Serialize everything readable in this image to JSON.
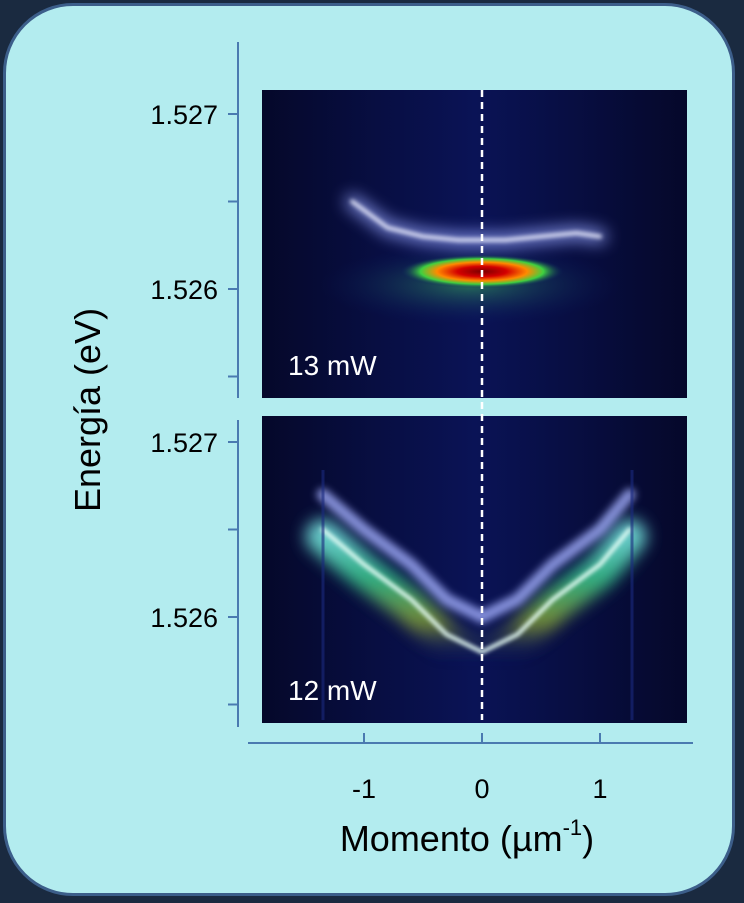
{
  "chart_data": {
    "type": "heatmap",
    "title": "",
    "xlabel": "Momento (µm",
    "xlabel_superscript": "-1",
    "xlabel_close": ")",
    "ylabel": "Energía (eV)",
    "x_ticks": [
      -1,
      0,
      1
    ],
    "x_tick_labels": [
      "-1",
      "0",
      "1"
    ],
    "xlim": [
      -1.8,
      1.8
    ],
    "zero_line": true,
    "colormap": "jet-like (dark blue → cyan → green → yellow → red), white highlights",
    "panels": [
      {
        "label": "13 mW",
        "power_mW": 13,
        "ylim": [
          1.5255,
          1.5272
        ],
        "y_ticks": [
          1.527,
          1.526
        ],
        "y_tick_labels": [
          "1.527",
          "1.526"
        ],
        "dispersion_k": [
          -1.1,
          -0.8,
          -0.5,
          -0.2,
          0.0,
          0.2,
          0.5,
          0.8,
          1.0
        ],
        "dispersion_E": [
          1.5265,
          1.52635,
          1.5263,
          1.52628,
          1.52628,
          1.52628,
          1.5263,
          1.52632,
          1.5263
        ],
        "condensate_k": 0.0,
        "condensate_E": 1.5261
      },
      {
        "label": "12 mW",
        "power_mW": 12,
        "ylim": [
          1.5255,
          1.5272
        ],
        "y_ticks": [
          1.527,
          1.526
        ],
        "y_tick_labels": [
          "1.527",
          "1.526"
        ],
        "dispersion_k": [
          -1.35,
          -1.0,
          -0.6,
          -0.3,
          0.0,
          0.3,
          0.6,
          1.0,
          1.25
        ],
        "dispersion_E": [
          1.5265,
          1.5263,
          1.5261,
          1.5259,
          1.5258,
          1.5259,
          1.5261,
          1.5263,
          1.5265
        ]
      }
    ]
  }
}
